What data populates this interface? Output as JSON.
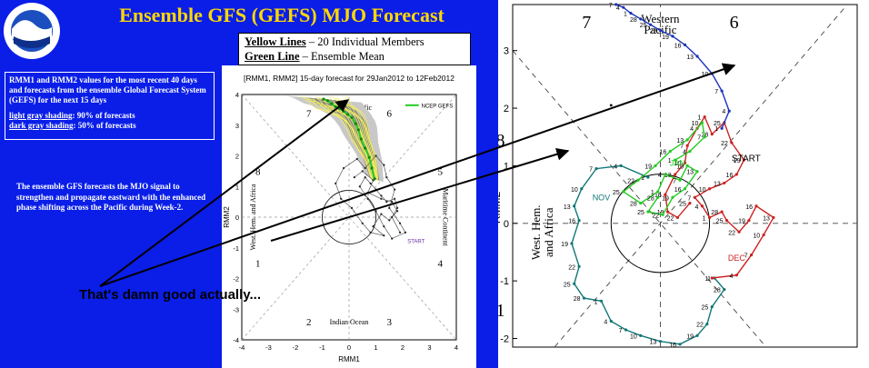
{
  "title": "Ensemble GFS (GEFS) MJO Forecast",
  "legend_box": {
    "line1_key": "Yellow Lines",
    "line1_text": " – 20 Individual Members",
    "line2_key": "Green Line",
    "line2_text": " – Ensemble Mean"
  },
  "info_box": {
    "text": "RMM1 and RMM2 values for the most recent 40 days and forecasts from the ensemble Global Forecast System (GEFS) for the next 15 days",
    "light_label": "light gray shading",
    "light_text": ": 90% of forecasts",
    "dark_label": "dark gray shading",
    "dark_text": ": 50% of forecasts"
  },
  "description": "The ensemble GFS forecasts the MJO signal to strengthen and propagate eastward with the enhanced phase shifting across the Pacific during Week-2.",
  "caption": "That's damn good actually...",
  "colors": {
    "background_blue": "#0a1ee8",
    "title_yellow": "#ffd800",
    "member_yellow": "#f5f060",
    "ensemble_green": "#22cc22",
    "obs_red": "#cc2222",
    "obs_teal": "#117777",
    "obs_blue": "#1a33bb"
  },
  "chart_data": [
    {
      "type": "scatter",
      "title": "[RMM1, RMM2] 15-day forecast for 29Jan2012 to 12Feb2012",
      "legend": [
        "NCEP GEFS"
      ],
      "legend_position": "top-right",
      "xlabel": "RMM1",
      "ylabel": "RMM2",
      "xlim": [
        -4,
        4
      ],
      "ylim": [
        -4,
        4
      ],
      "xticks": [
        "-4",
        "-3",
        "-2",
        "-1",
        "0",
        "1",
        "2",
        "3",
        "4"
      ],
      "yticks": [
        "-4",
        "-3",
        "-2",
        "-1",
        "0",
        "1",
        "2",
        "3",
        "4"
      ],
      "phase_numbers": [
        {
          "label": "1",
          "x": -3.4,
          "y": -1.5
        },
        {
          "label": "2",
          "x": -1.5,
          "y": -3.4
        },
        {
          "label": "3",
          "x": 1.5,
          "y": -3.4
        },
        {
          "label": "4",
          "x": 3.4,
          "y": -1.5
        },
        {
          "label": "5",
          "x": 3.4,
          "y": 1.5
        },
        {
          "label": "6",
          "x": 1.5,
          "y": 3.4
        },
        {
          "label": "7",
          "x": -1.5,
          "y": 3.4
        },
        {
          "label": "8",
          "x": -3.4,
          "y": 1.5
        }
      ],
      "region_labels": [
        {
          "text": "Western Pacific",
          "x": 0,
          "y": 3.5
        },
        {
          "text": "Indian Ocean",
          "x": 0,
          "y": -3.5
        },
        {
          "text": "West. Hem. and Africa",
          "x": -3.5,
          "y": 0
        },
        {
          "text": "Maritime Continent",
          "x": 3.5,
          "y": 0
        }
      ],
      "start_label": "START",
      "observed": [
        [
          0.2,
          1.3
        ],
        [
          0.5,
          1.5
        ],
        [
          0.9,
          1.2
        ],
        [
          0.7,
          0.8
        ],
        [
          1.2,
          0.6
        ],
        [
          1.6,
          0.5
        ],
        [
          1.8,
          0.2
        ],
        [
          1.5,
          -0.1
        ],
        [
          1.2,
          0.1
        ],
        [
          0.9,
          -0.3
        ],
        [
          1.3,
          -0.6
        ],
        [
          0.8,
          -0.5
        ],
        [
          0.5,
          -0.2
        ],
        [
          0.1,
          0.3
        ],
        [
          -0.3,
          0.6
        ],
        [
          -0.5,
          1.1
        ],
        [
          -0.2,
          1.6
        ],
        [
          0.3,
          1.9
        ],
        [
          0.6,
          1.6
        ],
        [
          1.0,
          2.0
        ],
        [
          1.3,
          1.7
        ],
        [
          1.4,
          1.3
        ],
        [
          1.7,
          0.9
        ],
        [
          1.5,
          0.3
        ],
        [
          1.9,
          -0.2
        ],
        [
          2.1,
          -0.5
        ],
        [
          1.6,
          -0.7
        ],
        [
          1.3,
          -0.3
        ],
        [
          1.0,
          0.2
        ],
        [
          0.7,
          0.6
        ],
        [
          0.4,
          1.0
        ],
        [
          0.6,
          1.3
        ],
        [
          0.8,
          1.1
        ],
        [
          1.0,
          0.9
        ],
        [
          1.2,
          0.7
        ],
        [
          1.4,
          0.5
        ],
        [
          1.7,
          0.6
        ],
        [
          1.8,
          0.3
        ],
        [
          1.6,
          0.0
        ],
        [
          1.9,
          -0.5
        ]
      ],
      "ensemble_mean": [
        [
          0.95,
          1.25
        ],
        [
          0.85,
          1.6
        ],
        [
          0.75,
          1.95
        ],
        [
          0.6,
          2.25
        ],
        [
          0.45,
          2.55
        ],
        [
          0.35,
          2.85
        ],
        [
          0.25,
          3.05
        ],
        [
          0.1,
          3.25
        ],
        [
          -0.05,
          3.35
        ],
        [
          -0.2,
          3.45
        ],
        [
          -0.35,
          3.55
        ],
        [
          -0.5,
          3.6
        ],
        [
          -0.65,
          3.7
        ],
        [
          -0.8,
          3.8
        ],
        [
          -0.95,
          3.85
        ]
      ]
    },
    {
      "type": "line",
      "xlabel": "",
      "ylabel": "RMM2",
      "xlim": [
        -3,
        4
      ],
      "ylim": [
        -2.15,
        3.8
      ],
      "yticks": [
        "-2",
        "-1",
        "0",
        "1",
        "2",
        "3"
      ],
      "phase_numbers": [
        {
          "label": "7",
          "x": -1.5,
          "y": 3.5
        },
        {
          "label": "6",
          "x": 1.5,
          "y": 3.5
        },
        {
          "label": "8",
          "x": -3.25,
          "y": 1.45
        },
        {
          "label": "1",
          "x": -3.25,
          "y": -1.5
        }
      ],
      "region_labels": [
        {
          "text": "Western Pacific",
          "x": 0,
          "y": 3.55
        },
        {
          "text": "West. Hem. and Africa",
          "x": -3.5,
          "y": 0
        }
      ],
      "start_label": "START",
      "teal_series": {
        "name": "",
        "points": [
          [
            -0.25,
            0.8
          ],
          [
            -0.8,
            1.0
          ],
          [
            -1.3,
            0.95
          ],
          [
            -1.6,
            0.6
          ],
          [
            -1.75,
            0.3
          ],
          [
            -1.65,
            0.05
          ],
          [
            -1.8,
            -0.35
          ],
          [
            -1.65,
            -0.75
          ],
          [
            -1.75,
            -1.05
          ],
          [
            -1.55,
            -1.3
          ],
          [
            -1.2,
            -1.35
          ],
          [
            -1.0,
            -1.7
          ],
          [
            -0.7,
            -1.85
          ],
          [
            -0.4,
            -1.95
          ],
          [
            0.0,
            -2.05
          ],
          [
            0.4,
            -2.1
          ],
          [
            0.75,
            -1.95
          ],
          [
            0.95,
            -1.75
          ],
          [
            1.05,
            -1.45
          ],
          [
            1.3,
            -1.15
          ],
          [
            1.1,
            -0.95
          ]
        ]
      },
      "red_series": {
        "name": "",
        "points": [
          [
            1.05,
            -0.95
          ],
          [
            1.55,
            -0.9
          ],
          [
            1.85,
            -0.55
          ],
          [
            2.1,
            -0.2
          ],
          [
            2.3,
            0.1
          ],
          [
            1.95,
            0.3
          ],
          [
            1.8,
            0.05
          ],
          [
            1.6,
            -0.15
          ],
          [
            1.35,
            0.05
          ],
          [
            1.25,
            0.2
          ],
          [
            1.0,
            0.1
          ],
          [
            0.85,
            0.3
          ],
          [
            0.7,
            0.45
          ],
          [
            1.0,
            0.6
          ],
          [
            1.3,
            0.7
          ],
          [
            1.55,
            0.85
          ],
          [
            1.7,
            1.1
          ],
          [
            1.45,
            1.4
          ],
          [
            1.3,
            1.75
          ],
          [
            1.05,
            1.55
          ],
          [
            0.9,
            1.85
          ],
          [
            0.75,
            1.65
          ],
          [
            0.55,
            1.35
          ],
          [
            0.5,
            1.05
          ],
          [
            0.3,
            0.85
          ],
          [
            0.1,
            0.5
          ],
          [
            0.15,
            0.2
          ],
          [
            0.35,
            0.1
          ],
          [
            0.6,
            0.35
          ]
        ]
      },
      "green_series": {
        "name": "",
        "points": [
          [
            0.3,
            1.1
          ],
          [
            0.6,
            1.25
          ],
          [
            0.9,
            1.5
          ],
          [
            0.85,
            1.75
          ],
          [
            0.55,
            1.45
          ],
          [
            0.2,
            1.25
          ],
          [
            -0.1,
            1.0
          ],
          [
            -0.45,
            0.75
          ],
          [
            -0.75,
            0.55
          ],
          [
            -0.4,
            0.35
          ],
          [
            -0.05,
            0.55
          ],
          [
            0.1,
            0.85
          ],
          [
            0.4,
            0.75
          ],
          [
            0.55,
            1.0
          ],
          [
            0.75,
            0.9
          ],
          [
            0.5,
            0.6
          ],
          [
            0.25,
            0.45
          ],
          [
            0.05,
            0.15
          ],
          [
            -0.25,
            0.2
          ],
          [
            -0.05,
            0.45
          ]
        ]
      },
      "blue_series": {
        "name": "",
        "points": [
          [
            1.25,
            1.65
          ],
          [
            1.4,
            1.95
          ],
          [
            1.25,
            2.3
          ],
          [
            1.05,
            2.6
          ],
          [
            0.75,
            2.9
          ],
          [
            0.5,
            3.1
          ],
          [
            0.25,
            3.25
          ],
          [
            0.0,
            3.35
          ],
          [
            -0.2,
            3.45
          ],
          [
            -0.4,
            3.55
          ],
          [
            -0.6,
            3.65
          ],
          [
            -0.75,
            3.75
          ],
          [
            -0.9,
            3.8
          ]
        ]
      }
    }
  ]
}
